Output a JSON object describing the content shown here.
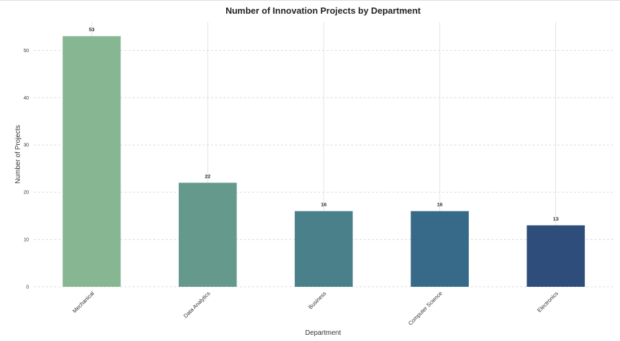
{
  "chart_data": {
    "type": "bar",
    "title": "Number of Innovation Projects by Department",
    "xlabel": "Department",
    "ylabel": "Number of Projects",
    "categories": [
      "Mechanical",
      "Data Analytics",
      "Business",
      "Computer Science",
      "Electronics"
    ],
    "values": [
      53,
      22,
      16,
      16,
      13
    ],
    "colors": [
      "#86b692",
      "#65998b",
      "#4a8089",
      "#376a88",
      "#2e4d7b"
    ],
    "ylim": [
      0,
      56
    ],
    "yticks": [
      0,
      10,
      20,
      30,
      40,
      50
    ],
    "grid": true,
    "legend": "none"
  }
}
